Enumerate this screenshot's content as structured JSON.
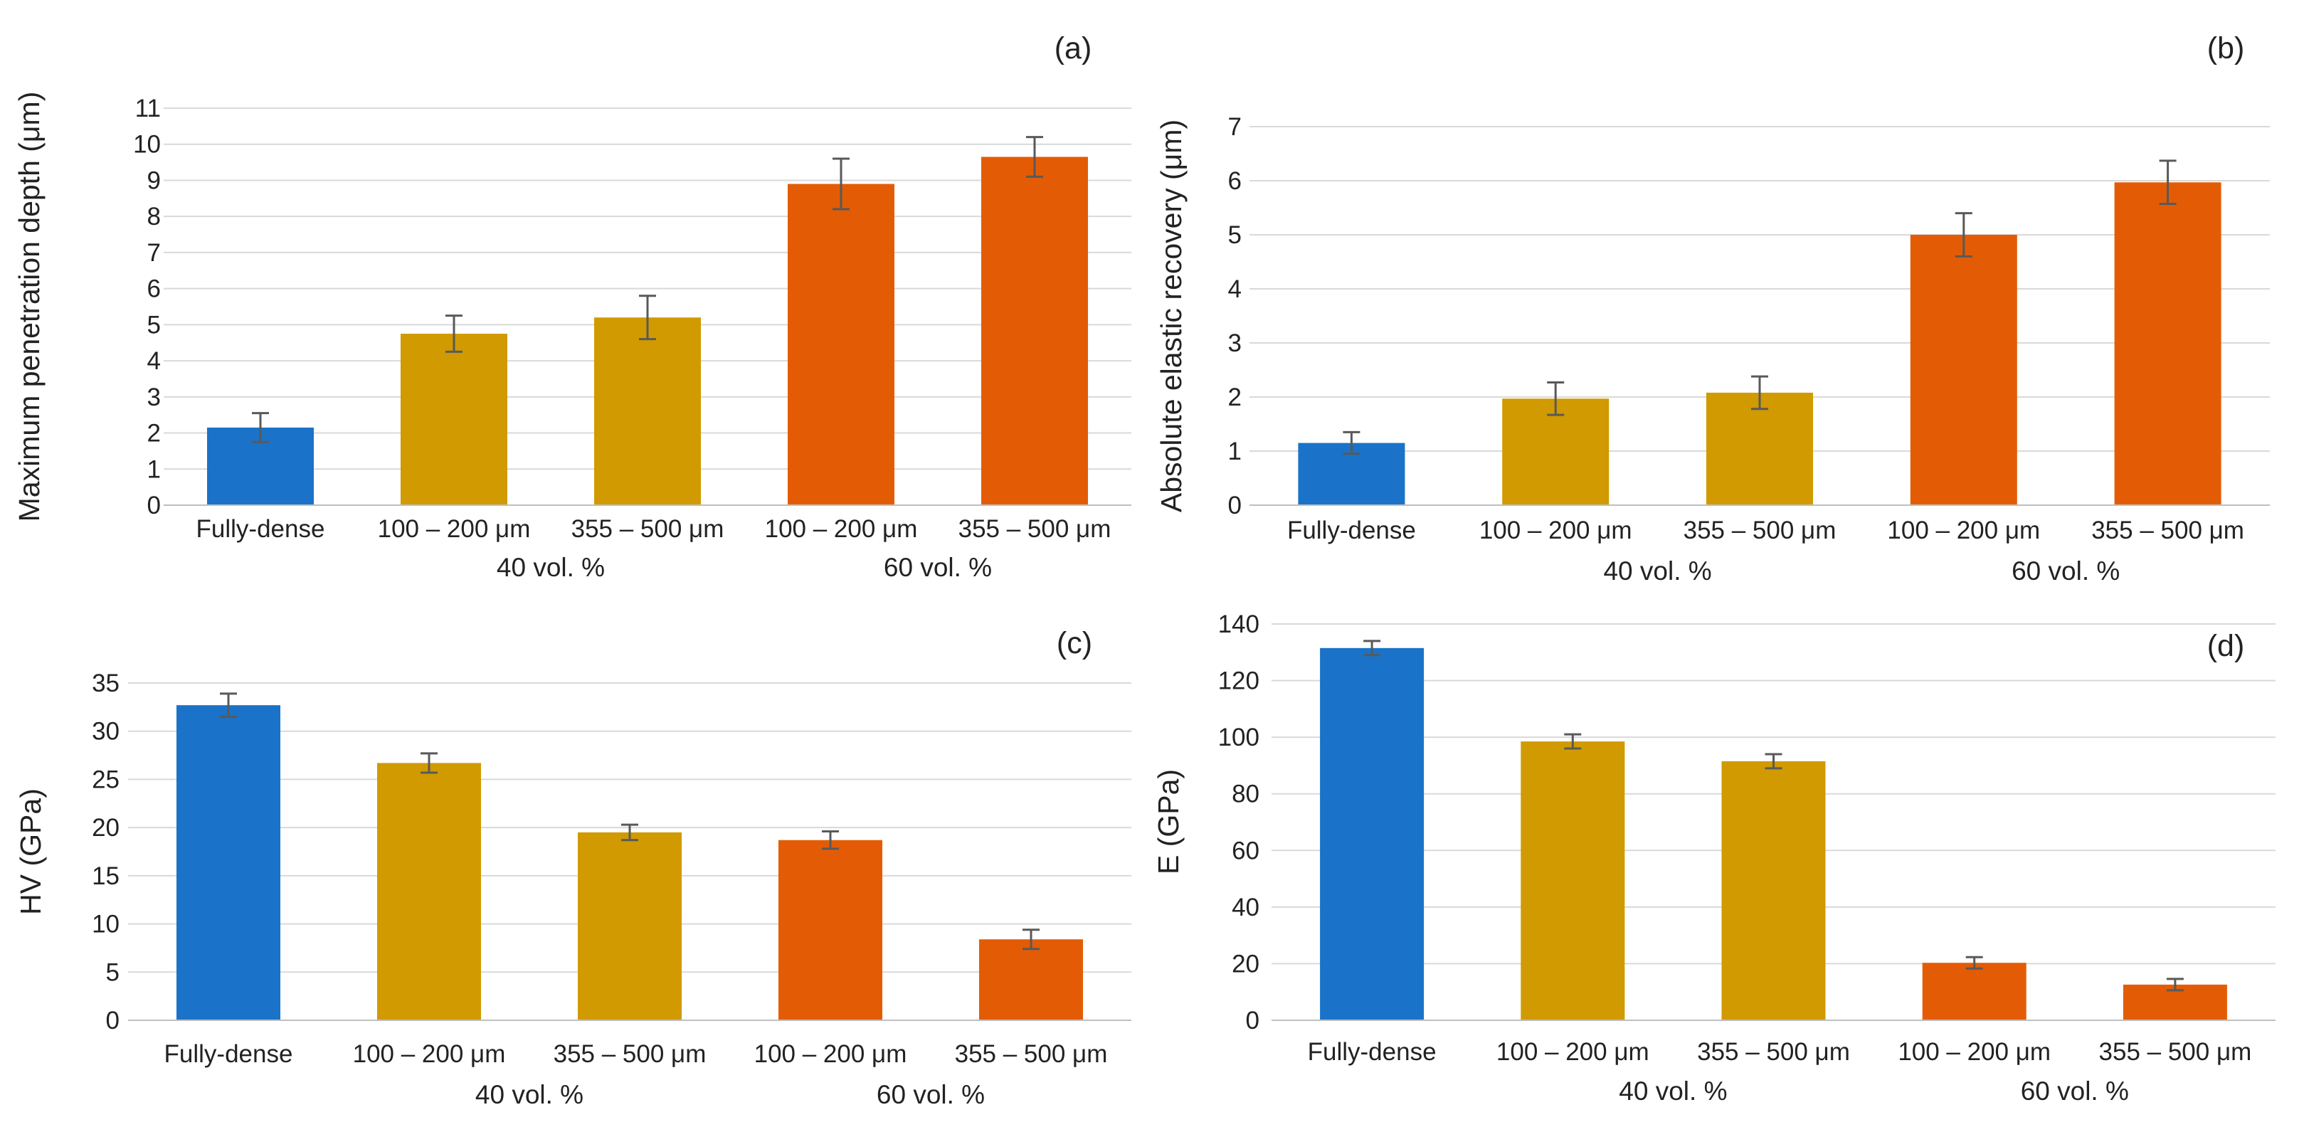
{
  "colors": {
    "fully_dense": "#1a73c8",
    "vol40": "#d09a00",
    "vol60": "#e35c05",
    "grid": "#d9d9d9",
    "errorbar": "#595959"
  },
  "chart_data": [
    {
      "type": "bar",
      "panel_label": "(a)",
      "ylabel": "Maximum penetration depth (μm)",
      "ylim": [
        0,
        11
      ],
      "yticks": [
        "0",
        "1",
        "2",
        "3",
        "4",
        "5",
        "6",
        "7",
        "8",
        "9",
        "10",
        "11"
      ],
      "categories": [
        "Fully-dense",
        "100 – 200 μm",
        "355 – 500 μm",
        "100 – 200 μm",
        "355 – 500 μm"
      ],
      "groups": [
        {
          "label": "40 vol. %",
          "from": 1,
          "to": 2
        },
        {
          "label": "60 vol. %",
          "from": 3,
          "to": 4
        }
      ],
      "values": [
        2.15,
        4.75,
        5.2,
        8.9,
        9.65
      ],
      "errors": [
        0.4,
        0.5,
        0.6,
        0.7,
        0.55
      ],
      "bar_colors": [
        "fully_dense",
        "vol40",
        "vol40",
        "vol60",
        "vol60"
      ]
    },
    {
      "type": "bar",
      "panel_label": "(b)",
      "ylabel": "Absolute elastic recovery (μm)",
      "ylim": [
        0,
        7
      ],
      "yticks": [
        "0",
        "1",
        "2",
        "3",
        "4",
        "5",
        "6",
        "7"
      ],
      "categories": [
        "Fully-dense",
        "100 – 200 μm",
        "355 – 500 μm",
        "100 – 200 μm",
        "355 – 500 μm"
      ],
      "groups": [
        {
          "label": "40 vol. %",
          "from": 1,
          "to": 2
        },
        {
          "label": "60 vol. %",
          "from": 3,
          "to": 4
        }
      ],
      "values": [
        1.15,
        1.97,
        2.08,
        5.0,
        5.97
      ],
      "errors": [
        0.2,
        0.3,
        0.3,
        0.4,
        0.4
      ],
      "bar_colors": [
        "fully_dense",
        "vol40",
        "vol40",
        "vol60",
        "vol60"
      ]
    },
    {
      "type": "bar",
      "panel_label": "(c)",
      "ylabel": "HV (GPa)",
      "ylim": [
        0,
        35
      ],
      "yticks": [
        "0",
        "5",
        "10",
        "15",
        "20",
        "25",
        "30",
        "35"
      ],
      "categories": [
        "Fully-dense",
        "100 – 200 μm",
        "355 – 500 μm",
        "100 – 200 μm",
        "355 – 500 μm"
      ],
      "groups": [
        {
          "label": "40 vol. %",
          "from": 1,
          "to": 2
        },
        {
          "label": "60 vol. %",
          "from": 3,
          "to": 4
        }
      ],
      "values": [
        32.7,
        26.7,
        19.5,
        18.7,
        8.4
      ],
      "errors": [
        1.2,
        1.0,
        0.8,
        0.9,
        1.0
      ],
      "bar_colors": [
        "fully_dense",
        "vol40",
        "vol40",
        "vol60",
        "vol60"
      ]
    },
    {
      "type": "bar",
      "panel_label": "(d)",
      "ylabel": "E (GPa)",
      "ylim": [
        0,
        140
      ],
      "yticks": [
        "0",
        "20",
        "40",
        "60",
        "80",
        "100",
        "120",
        "140"
      ],
      "categories": [
        "Fully-dense",
        "100 – 200 μm",
        "355 – 500 μm",
        "100 – 200 μm",
        "355 – 500 μm"
      ],
      "groups": [
        {
          "label": "40 vol. %",
          "from": 1,
          "to": 2
        },
        {
          "label": "60 vol. %",
          "from": 3,
          "to": 4
        }
      ],
      "values": [
        131.5,
        98.5,
        91.5,
        20.3,
        12.6
      ],
      "errors": [
        2.5,
        2.5,
        2.5,
        2.0,
        2.0
      ],
      "bar_colors": [
        "fully_dense",
        "vol40",
        "vol40",
        "vol60",
        "vol60"
      ]
    }
  ]
}
